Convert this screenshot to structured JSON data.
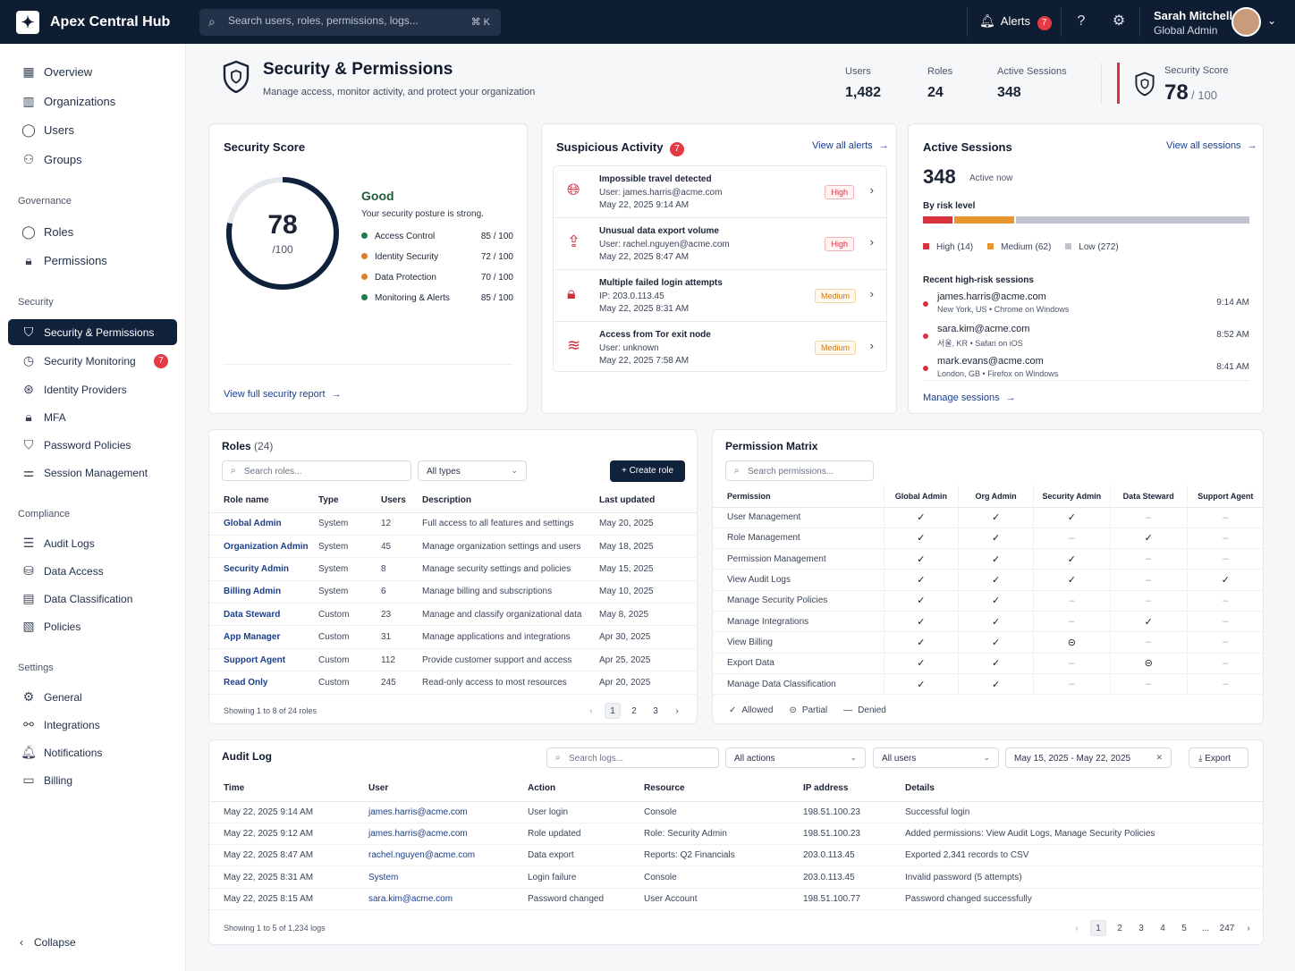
{
  "app": {
    "title": "Apex Central Hub",
    "search_placeholder": "Search users, roles, permissions, logs...",
    "shortcut": "⌘ K",
    "alerts_label": "Alerts",
    "alerts_count": "7",
    "user_name": "Sarah Mitchell",
    "user_role": "Global Admin"
  },
  "nav": {
    "main": [
      {
        "label": "Overview",
        "icon": "grid-icon"
      },
      {
        "label": "Organizations",
        "icon": "building-icon"
      },
      {
        "label": "Users",
        "icon": "user-icon"
      },
      {
        "label": "Groups",
        "icon": "users-icon"
      }
    ],
    "governance_title": "Governance",
    "governance": [
      {
        "label": "Roles",
        "icon": "user-icon"
      },
      {
        "label": "Permissions",
        "icon": "lock-icon"
      }
    ],
    "security_title": "Security",
    "security": [
      {
        "label": "Security & Permissions",
        "icon": "shield-icon",
        "active": true
      },
      {
        "label": "Security Monitoring",
        "icon": "monitor-icon",
        "badge": "7"
      },
      {
        "label": "Identity Providers",
        "icon": "fingerprint-icon"
      },
      {
        "label": "MFA",
        "icon": "lock-icon"
      },
      {
        "label": "Password Policies",
        "icon": "shield-icon"
      },
      {
        "label": "Session Management",
        "icon": "sliders-icon"
      }
    ],
    "compliance_title": "Compliance",
    "compliance": [
      {
        "label": "Audit Logs",
        "icon": "list-icon"
      },
      {
        "label": "Data Access",
        "icon": "database-icon"
      },
      {
        "label": "Data Classification",
        "icon": "file-icon"
      },
      {
        "label": "Policies",
        "icon": "policy-icon"
      }
    ],
    "settings_title": "Settings",
    "settings": [
      {
        "label": "General",
        "icon": "gear-icon"
      },
      {
        "label": "Integrations",
        "icon": "integration-icon"
      },
      {
        "label": "Notifications",
        "icon": "bell-icon"
      },
      {
        "label": "Billing",
        "icon": "card-icon"
      }
    ],
    "collapse": "Collapse"
  },
  "header": {
    "title": "Security & Permissions",
    "subtitle": "Manage access, monitor activity, and protect your organization",
    "stats": [
      {
        "label": "Users",
        "value": "1,482"
      },
      {
        "label": "Roles",
        "value": "24"
      },
      {
        "label": "Active Sessions",
        "value": "348"
      }
    ],
    "score_label": "Security Score",
    "score_value": "78",
    "score_max": "/ 100"
  },
  "security_score": {
    "title": "Security Score",
    "value": "78",
    "max": "/100",
    "score_fraction": 0.78,
    "status": "Good",
    "description": "Your security posture is strong.",
    "items": [
      {
        "label": "Access Control",
        "value": "85 / 100",
        "color": "#1f7a4c"
      },
      {
        "label": "Identity Security",
        "value": "72 / 100",
        "color": "#d9812c"
      },
      {
        "label": "Data Protection",
        "value": "70 / 100",
        "color": "#d9812c"
      },
      {
        "label": "Monitoring & Alerts",
        "value": "85 / 100",
        "color": "#1f7a4c"
      }
    ],
    "link": "View full security report"
  },
  "suspicious": {
    "title": "Suspicious Activity",
    "count": "7",
    "link": "View all alerts",
    "items": [
      {
        "title": "Impossible travel detected",
        "detail": "User: james.harris@acme.com",
        "time": "May 22, 2025 9:14 AM",
        "severity": "High",
        "icon": "globe-icon"
      },
      {
        "title": "Unusual data export volume",
        "detail": "User: rachel.nguyen@acme.com",
        "time": "May 22, 2025 8:47 AM",
        "severity": "High",
        "icon": "upload-icon"
      },
      {
        "title": "Multiple failed login attempts",
        "detail": "IP: 203.0.113.45",
        "time": "May 22, 2025 8:31 AM",
        "severity": "Medium",
        "icon": "lock-icon"
      },
      {
        "title": "Access from Tor exit node",
        "detail": "User: unknown",
        "time": "May 22, 2025 7:58 AM",
        "severity": "Medium",
        "icon": "wifi-icon"
      }
    ]
  },
  "sessions": {
    "title": "Active Sessions",
    "link": "View all sessions",
    "count": "348",
    "count_label": "Active now",
    "risk_title": "By risk level",
    "risk": [
      {
        "label": "High (14)",
        "value": 14,
        "color": "#d9323f"
      },
      {
        "label": "Medium (62)",
        "value": 62,
        "color": "#e8962f"
      },
      {
        "label": "Low (272)",
        "value": 272,
        "color": "#bfc4cc"
      }
    ],
    "recent_title": "Recent high-risk sessions",
    "recent": [
      {
        "email": "james.harris@acme.com",
        "loc": "New York, US • Chrome on Windows",
        "time": "9:14 AM"
      },
      {
        "email": "sara.kim@acme.com",
        "loc": "서울, KR • Safari on iOS",
        "time": "8:52 AM"
      },
      {
        "email": "mark.evans@acme.com",
        "loc": "London, GB • Firefox on Windows",
        "time": "8:41 AM"
      }
    ],
    "manage_link": "Manage sessions"
  },
  "roles": {
    "title": "Roles",
    "count": "(24)",
    "search_placeholder": "Search roles...",
    "type_filter": "All types",
    "create": "Create role",
    "columns": [
      "Role name",
      "Type",
      "Users",
      "Description",
      "Last updated"
    ],
    "rows": [
      [
        "Global Admin",
        "System",
        "12",
        "Full access to all features and settings",
        "May 20, 2025"
      ],
      [
        "Organization Admin",
        "System",
        "45",
        "Manage organization settings and users",
        "May 18, 2025"
      ],
      [
        "Security Admin",
        "System",
        "8",
        "Manage security settings and policies",
        "May 15, 2025"
      ],
      [
        "Billing Admin",
        "System",
        "6",
        "Manage billing and subscriptions",
        "May 10, 2025"
      ],
      [
        "Data Steward",
        "Custom",
        "23",
        "Manage and classify organizational data",
        "May 8, 2025"
      ],
      [
        "App Manager",
        "Custom",
        "31",
        "Manage applications and integrations",
        "Apr 30, 2025"
      ],
      [
        "Support Agent",
        "Custom",
        "112",
        "Provide customer support and access",
        "Apr 25, 2025"
      ],
      [
        "Read Only",
        "Custom",
        "245",
        "Read-only access to most resources",
        "Apr 20, 2025"
      ]
    ],
    "footer": "Showing 1 to 8 of 24 roles",
    "pages": [
      "1",
      "2",
      "3"
    ]
  },
  "matrix": {
    "title": "Permission Matrix",
    "search_placeholder": "Search permissions...",
    "columns": [
      "Permission",
      "Global Admin",
      "Org Admin",
      "Security Admin",
      "Data Steward",
      "Support Agent"
    ],
    "rows": [
      [
        "User Management",
        "y",
        "y",
        "y",
        "n",
        "n"
      ],
      [
        "Role Management",
        "y",
        "y",
        "n",
        "y",
        "n"
      ],
      [
        "Permission Management",
        "y",
        "y",
        "y",
        "n",
        "n"
      ],
      [
        "View Audit Logs",
        "y",
        "y",
        "y",
        "n",
        "y"
      ],
      [
        "Manage Security Policies",
        "y",
        "y",
        "n",
        "n",
        "n"
      ],
      [
        "Manage Integrations",
        "y",
        "y",
        "n",
        "y",
        "n"
      ],
      [
        "View Billing",
        "y",
        "y",
        "p",
        "n",
        "n"
      ],
      [
        "Export Data",
        "y",
        "y",
        "n",
        "p",
        "n"
      ],
      [
        "Manage Data Classification",
        "y",
        "y",
        "n",
        "n",
        "n"
      ]
    ],
    "legend": [
      {
        "sym": "✓",
        "label": "Allowed"
      },
      {
        "sym": "⊝",
        "label": "Partial"
      },
      {
        "sym": "—",
        "label": "Denied"
      }
    ]
  },
  "audit": {
    "title": "Audit Log",
    "search_placeholder": "Search logs...",
    "action_filter": "All actions",
    "user_filter": "All users",
    "date_range": "May 15, 2025 - May 22, 2025",
    "export": "Export",
    "columns": [
      "Time",
      "User",
      "Action",
      "Resource",
      "IP address",
      "Details"
    ],
    "rows": [
      [
        "May 22, 2025 9:14 AM",
        "james.harris@acme.com",
        "User login",
        "Console",
        "198.51.100.23",
        "Successful login"
      ],
      [
        "May 22, 2025 9:12 AM",
        "james.harris@acme.com",
        "Role updated",
        "Role: Security Admin",
        "198.51.100.23",
        "Added permissions: View Audit Logs, Manage Security Policies"
      ],
      [
        "May 22, 2025 8:47 AM",
        "rachel.nguyen@acme.com",
        "Data export",
        "Reports: Q2 Financials",
        "203.0.113.45",
        "Exported 2,341 records to CSV"
      ],
      [
        "May 22, 2025 8:31 AM",
        "System",
        "Login failure",
        "Console",
        "203.0.113.45",
        "Invalid password (5 attempts)"
      ],
      [
        "May 22, 2025 8:15 AM",
        "sara.kim@acme.com",
        "Password changed",
        "User Account",
        "198.51.100.77",
        "Password changed successfully"
      ]
    ],
    "footer": "Showing 1 to 5 of 1,234 logs",
    "pages": [
      "1",
      "2",
      "3",
      "4",
      "5",
      "...",
      "247"
    ]
  }
}
